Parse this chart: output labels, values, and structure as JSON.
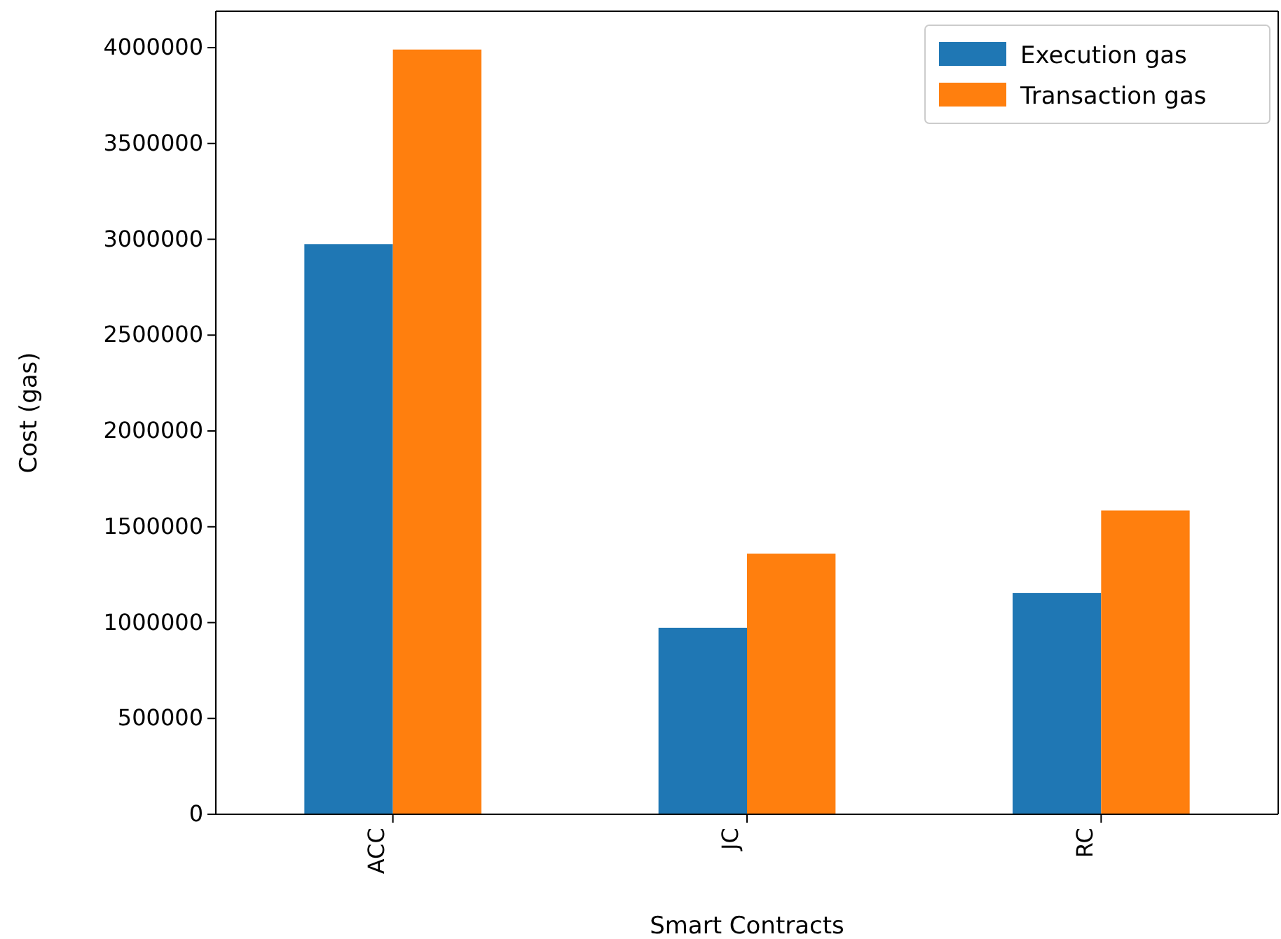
{
  "chart_data": {
    "type": "bar",
    "xlabel": "Smart Contracts",
    "ylabel": "Cost (gas)",
    "categories": [
      "ACC",
      "JC",
      "RC"
    ],
    "series": [
      {
        "name": "Execution gas",
        "color": "#1f77b4",
        "values": [
          2975000,
          973000,
          1155000
        ]
      },
      {
        "name": "Transaction gas",
        "color": "#ff7f0e",
        "values": [
          3990000,
          1360000,
          1585000
        ]
      }
    ],
    "ylim": [
      0,
      4190000
    ],
    "yticks": [
      0,
      500000,
      1000000,
      1500000,
      2000000,
      2500000,
      3000000,
      3500000,
      4000000
    ],
    "legend": "top right"
  }
}
